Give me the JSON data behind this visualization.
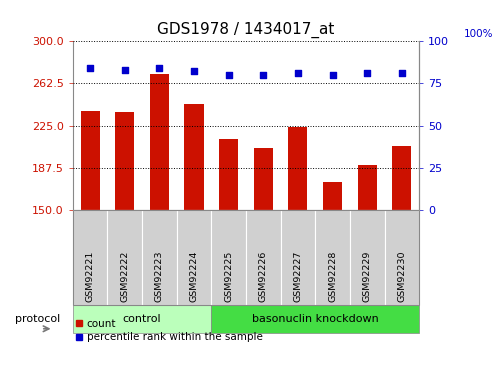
{
  "title": "GDS1978 / 1434017_at",
  "samples": [
    "GSM92221",
    "GSM92222",
    "GSM92223",
    "GSM92224",
    "GSM92225",
    "GSM92226",
    "GSM92227",
    "GSM92228",
    "GSM92229",
    "GSM92230"
  ],
  "counts": [
    238,
    237,
    271,
    244,
    213,
    205,
    224,
    175,
    190,
    207
  ],
  "percentile_ranks": [
    84,
    83,
    84,
    82,
    80,
    80,
    81,
    80,
    81,
    81
  ],
  "ylim_left": [
    150,
    300
  ],
  "ylim_right": [
    0,
    100
  ],
  "yticks_left": [
    150,
    187.5,
    225,
    262.5,
    300
  ],
  "yticks_right": [
    0,
    25,
    50,
    75,
    100
  ],
  "bar_color": "#cc1100",
  "dot_color": "#0000cc",
  "control_group_count": 4,
  "knockdown_group_count": 6,
  "control_label": "control",
  "knockdown_label": "basonuclin knockdown",
  "protocol_label": "protocol",
  "legend_count_label": "count",
  "legend_pct_label": "percentile rank within the sample",
  "left_tick_color": "#cc1100",
  "right_tick_color": "#0000cc",
  "right_axis_top_label": "100%",
  "tick_label_fontsize": 8,
  "title_fontsize": 11,
  "bar_width": 0.55,
  "dot_size": 22,
  "control_color": "#bbffbb",
  "knockdown_color": "#44dd44",
  "tickbox_color": "#d0d0d0"
}
